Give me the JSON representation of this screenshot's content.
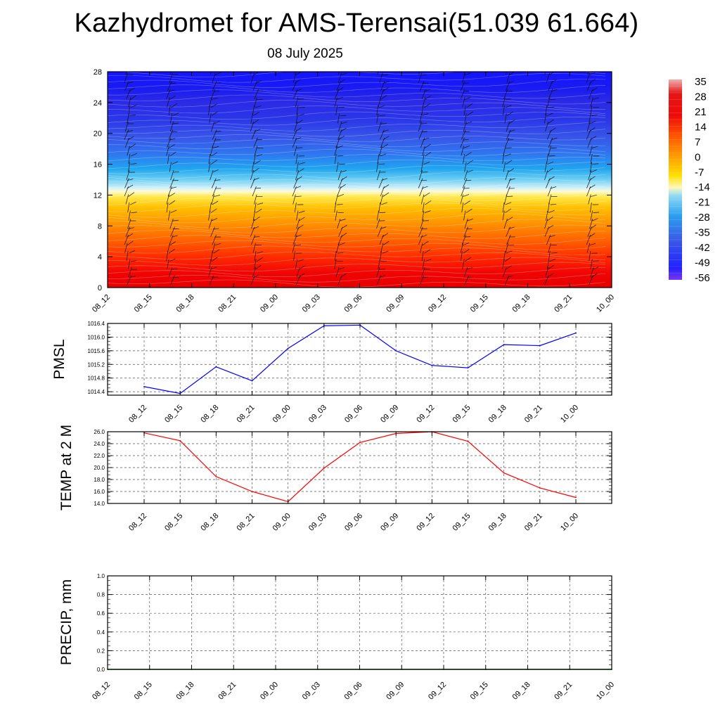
{
  "title": "Kazhydromet for AMS-Terensai(51.039 61.664)",
  "subtitle": "08 July 2025",
  "colors": {
    "pmsl_line": "#0000ff",
    "temp_line": "#ff0000",
    "precip_line": "#006400",
    "grid": "#555555"
  },
  "chart_data": [
    {
      "type": "heatmap",
      "name": "vertical-temperature-wind-section",
      "x": [
        "08_12",
        "08_15",
        "08_18",
        "08_21",
        "09_00",
        "09_03",
        "09_06",
        "09_09",
        "09_12",
        "09_15",
        "09_18",
        "09_21",
        "10_00"
      ],
      "y_ticks": [
        0,
        4,
        8,
        12,
        16,
        20,
        24,
        28
      ],
      "ylim": [
        0,
        28
      ],
      "colorbar": {
        "labels": [
          "35",
          "28",
          "21",
          "14",
          "7",
          "0",
          "-7",
          "-14",
          "-21",
          "-28",
          "-35",
          "-42",
          "-49",
          "-56"
        ],
        "range": [
          -60,
          38
        ]
      },
      "freezing_level_km": 12.5,
      "wind_barbs": true
    },
    {
      "type": "line",
      "name": "pmsl",
      "ylabel": "PMSL",
      "x": [
        "08_12",
        "08_15",
        "08_18",
        "08_21",
        "09_00",
        "09_03",
        "09_06",
        "09_09",
        "09_12",
        "09_15",
        "09_18",
        "09_21",
        "10_00"
      ],
      "y": [
        1014.55,
        1014.35,
        1015.13,
        1014.72,
        1015.67,
        1016.33,
        1016.35,
        1015.6,
        1015.17,
        1015.1,
        1015.78,
        1015.75,
        1016.12
      ],
      "ylim": [
        1014.3,
        1016.4
      ],
      "y_ticks": [
        "1014.4",
        "1014.8",
        "1015.2",
        "1015.6",
        "1016.0",
        "1016.4"
      ],
      "grid": true
    },
    {
      "type": "line",
      "name": "temperature-2m",
      "ylabel": "TEMP at 2 M",
      "x": [
        "08_12",
        "08_15",
        "08_18",
        "08_21",
        "09_00",
        "09_03",
        "09_06",
        "09_09",
        "09_12",
        "09_15",
        "09_18",
        "09_21",
        "10_00"
      ],
      "y": [
        25.8,
        24.5,
        18.5,
        16.0,
        14.3,
        19.9,
        24.2,
        25.7,
        26.0,
        24.4,
        19.1,
        16.6,
        15.0
      ],
      "ylim": [
        14,
        26
      ],
      "y_ticks": [
        "14.0",
        "16.0",
        "18.0",
        "20.0",
        "22.0",
        "24.0",
        "26.0"
      ],
      "grid": true
    },
    {
      "type": "line",
      "name": "precipitation",
      "ylabel": "PRECIP, mm",
      "x": [
        "08_12",
        "08_15",
        "08_18",
        "08_21",
        "09_00",
        "09_03",
        "09_06",
        "09_09",
        "09_12",
        "09_15",
        "09_18",
        "09_21",
        "10_00"
      ],
      "y": [
        0,
        0,
        0,
        0,
        0,
        0,
        0,
        0,
        0,
        0,
        0,
        0,
        0
      ],
      "ylim": [
        0,
        1
      ],
      "y_ticks": [
        "0.0",
        "0.2",
        "0.4",
        "0.6",
        "0.8",
        "1.0"
      ],
      "grid": true
    }
  ]
}
